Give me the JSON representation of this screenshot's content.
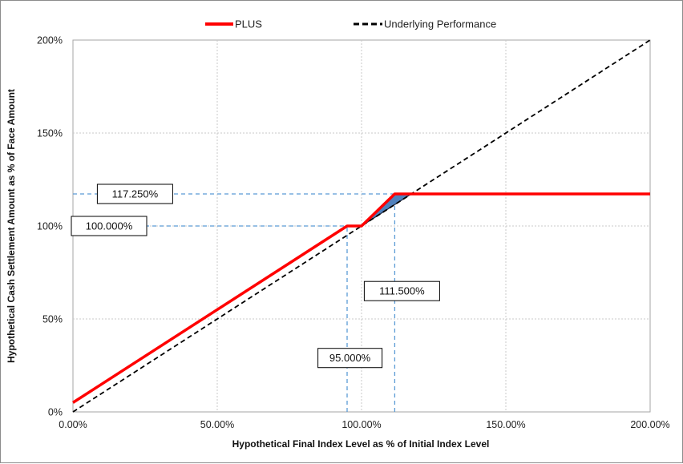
{
  "chart_data": {
    "type": "line",
    "title": "",
    "xlabel": "Hypothetical Final Index Level as % of Initial Index Level",
    "ylabel": "Hypothetical Cash Settlement Amount as % of Face Amount",
    "xlim": [
      0,
      200
    ],
    "ylim": [
      0,
      200
    ],
    "x_ticks": [
      0,
      50,
      100,
      150,
      200
    ],
    "y_ticks": [
      0,
      50,
      100,
      150,
      200
    ],
    "x_tick_labels": [
      "0.00%",
      "50.00%",
      "100.00%",
      "150.00%",
      "200.00%"
    ],
    "y_tick_labels": [
      "0%",
      "50%",
      "100%",
      "150%",
      "200%"
    ],
    "grid": true,
    "legend_position": "top",
    "series": [
      {
        "name": "PLUS",
        "color": "#ff0000",
        "style": "solid",
        "points": [
          [
            0,
            5
          ],
          [
            95,
            100
          ],
          [
            100,
            100
          ],
          [
            111.5,
            117.25
          ],
          [
            200,
            117.25
          ]
        ]
      },
      {
        "name": "Underlying Performance",
        "color": "#000000",
        "style": "dashed",
        "points": [
          [
            0,
            0
          ],
          [
            200,
            200
          ]
        ]
      }
    ],
    "shaded_region": {
      "color": "#4f81bd",
      "points": [
        [
          100,
          100
        ],
        [
          111.5,
          117.25
        ],
        [
          117.25,
          117.25
        ]
      ]
    },
    "reference_lines": [
      {
        "axis": "y",
        "value": 117.25,
        "from": 0,
        "to": 111.5
      },
      {
        "axis": "y",
        "value": 100,
        "from": 0,
        "to": 95
      },
      {
        "axis": "x",
        "value": 95,
        "from": 0,
        "to": 100
      },
      {
        "axis": "x",
        "value": 111.5,
        "from": 0,
        "to": 117.25
      }
    ],
    "annotations": [
      {
        "text": "117.250%",
        "x": 21.5,
        "y": 117.25
      },
      {
        "text": "100.000%",
        "x": 12.5,
        "y": 100
      },
      {
        "text": "111.500%",
        "x": 114,
        "y": 65
      },
      {
        "text": "95.000%",
        "x": 96,
        "y": 29
      }
    ]
  }
}
